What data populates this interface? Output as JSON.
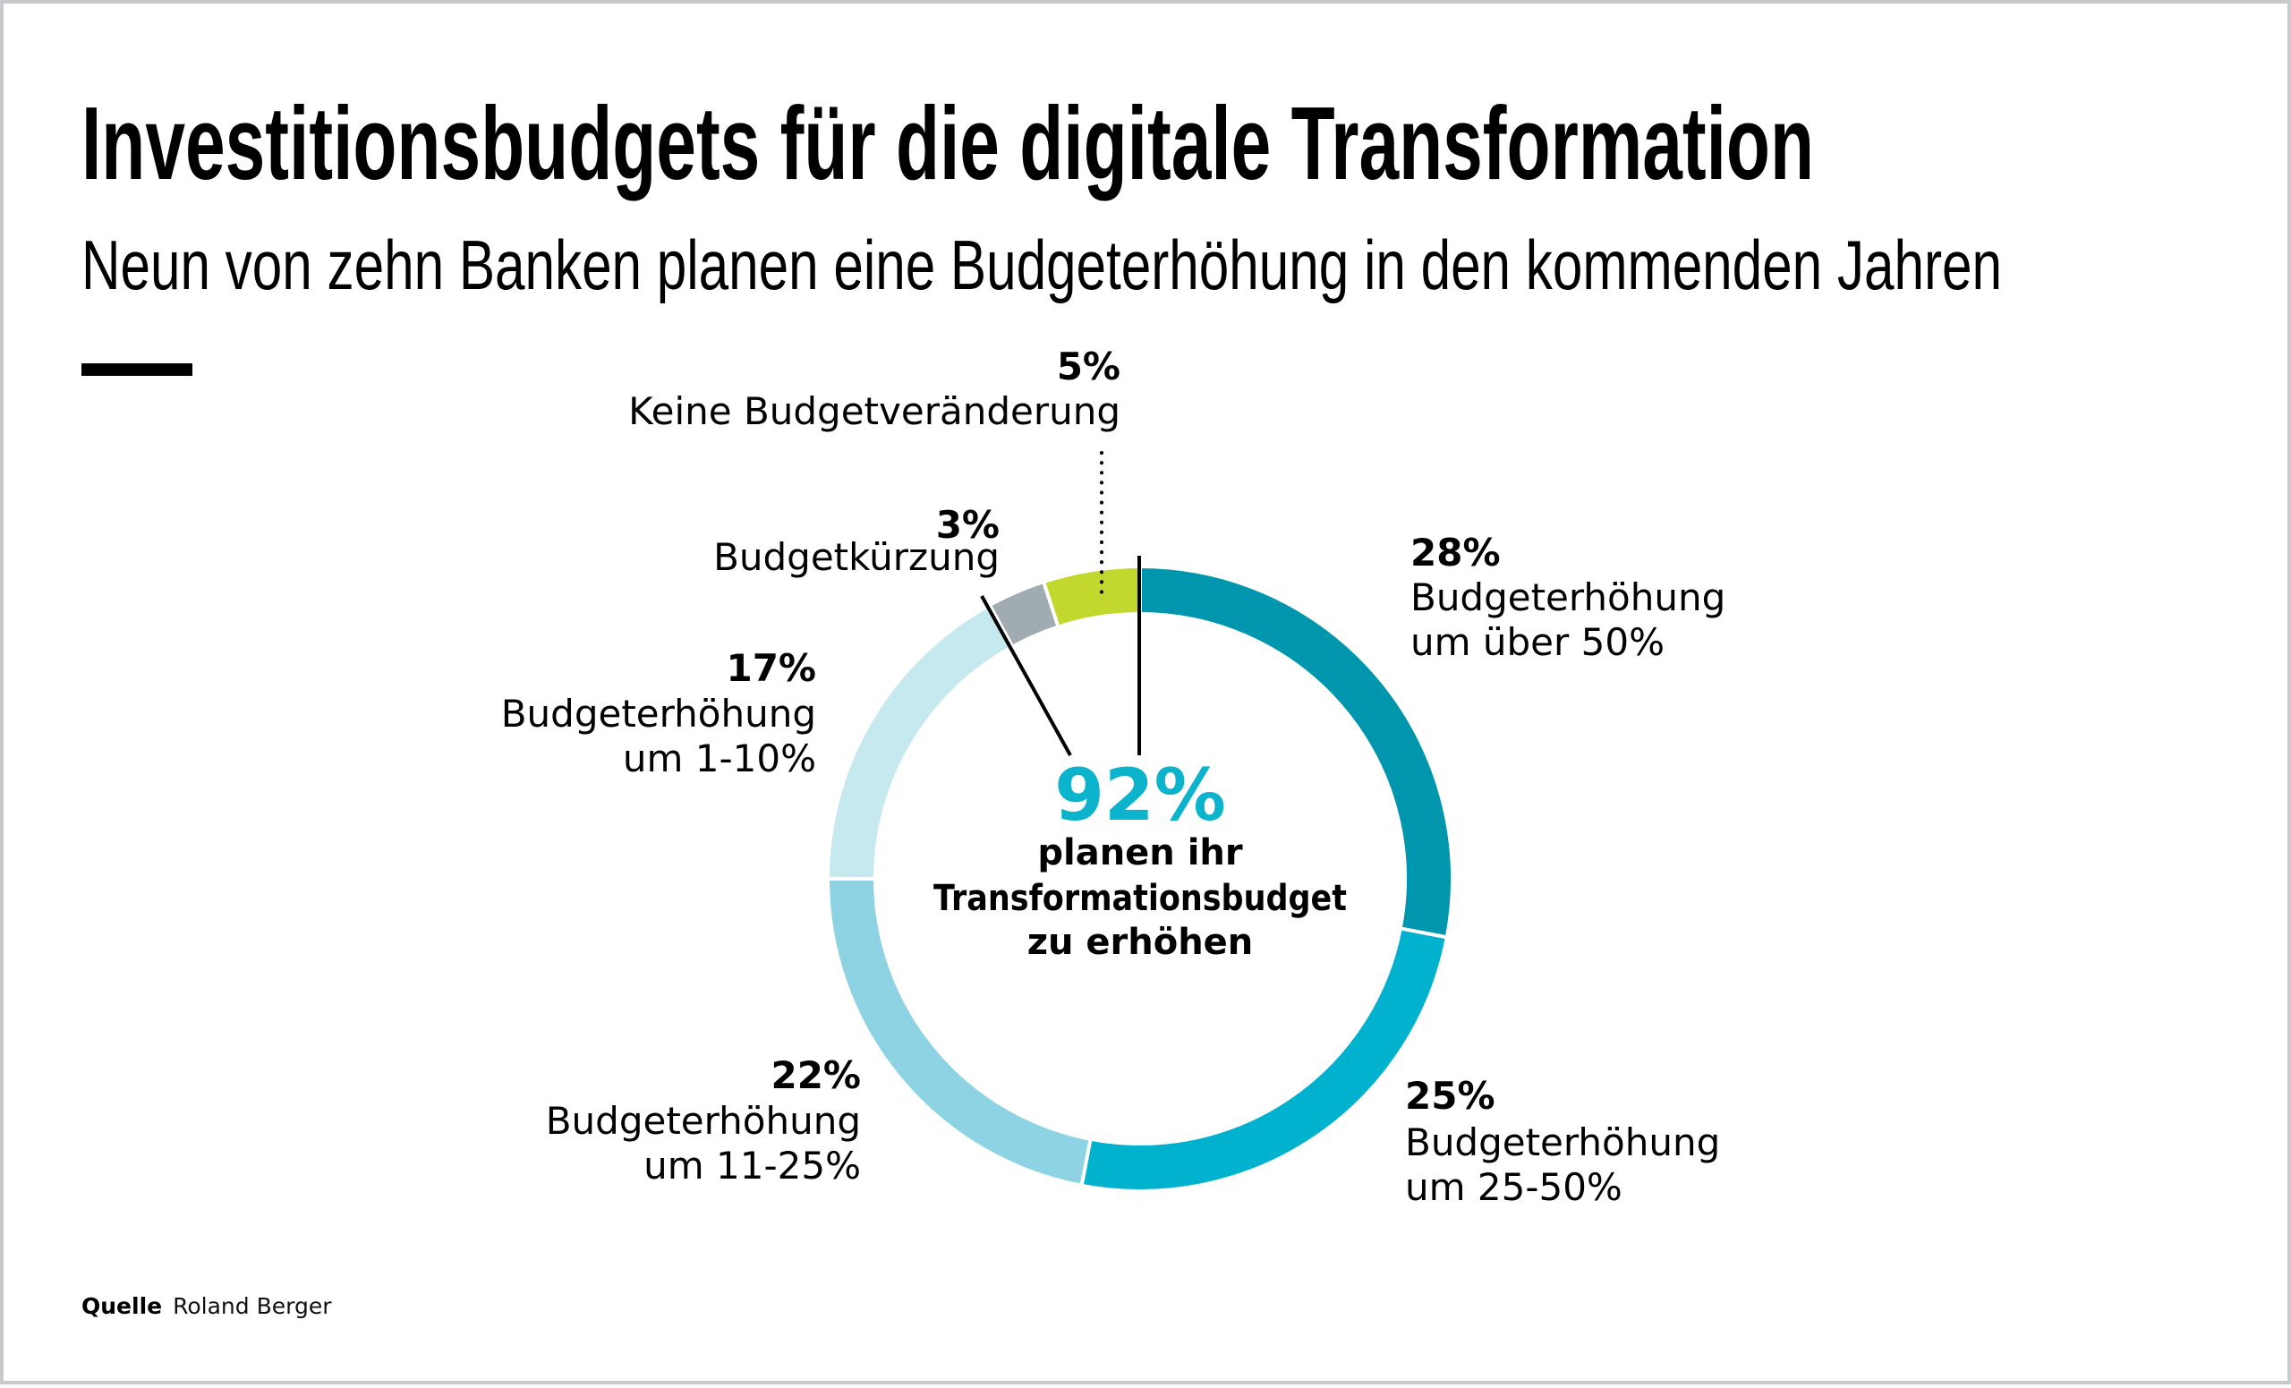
{
  "header": {
    "title": "Investitionsbudgets für die digitale Transformation",
    "subtitle": "Neun von zehn Banken planen eine Budgeterhöhung in den kommenden Jahren"
  },
  "center": {
    "value": "92%",
    "line1": "planen ihr",
    "line2": "Transformationsbudget",
    "line3": "zu erhöhen",
    "color": "#0bb3cd"
  },
  "source": {
    "label": "Quelle",
    "text": "Roland Berger"
  },
  "chart_data": {
    "type": "pie",
    "subtype": "donut",
    "title": "Investitionsbudgets für die digitale Transformation",
    "subtitle": "Neun von zehn Banken planen eine Budgeterhöhung in den kommenden Jahren",
    "unit": "%",
    "start": "top",
    "direction": "clockwise",
    "center_annotation": "92% planen ihr Transformationsbudget zu erhöhen",
    "slices": [
      {
        "label": "Budgeterhöhung um über 50%",
        "value": 28,
        "pct_text": "28%",
        "lines": [
          "Budgeterhöhung",
          "um über 50%"
        ],
        "color": "#0096ad"
      },
      {
        "label": "Budgeterhöhung um 25-50%",
        "value": 25,
        "pct_text": "25%",
        "lines": [
          "Budgeterhöhung",
          "um 25-50%"
        ],
        "color": "#00b2ce"
      },
      {
        "label": "Budgeterhöhung um 11-25%",
        "value": 22,
        "pct_text": "22%",
        "lines": [
          "Budgeterhöhung",
          "um 11-25%"
        ],
        "color": "#8dd3e4"
      },
      {
        "label": "Budgeterhöhung um 1-10%",
        "value": 17,
        "pct_text": "17%",
        "lines": [
          "Budgeterhöhung",
          "um 1-10%"
        ],
        "color": "#c6e8ef"
      },
      {
        "label": "Budgetkürzung",
        "value": 3,
        "pct_text": "3%",
        "lines": [
          "Budgetkürzung"
        ],
        "color": "#a0abb2"
      },
      {
        "label": "Keine Budgetveränderung",
        "value": 5,
        "pct_text": "5%",
        "lines": [
          "Keine Budgetveränderung"
        ],
        "color": "#c3d82e"
      }
    ]
  }
}
